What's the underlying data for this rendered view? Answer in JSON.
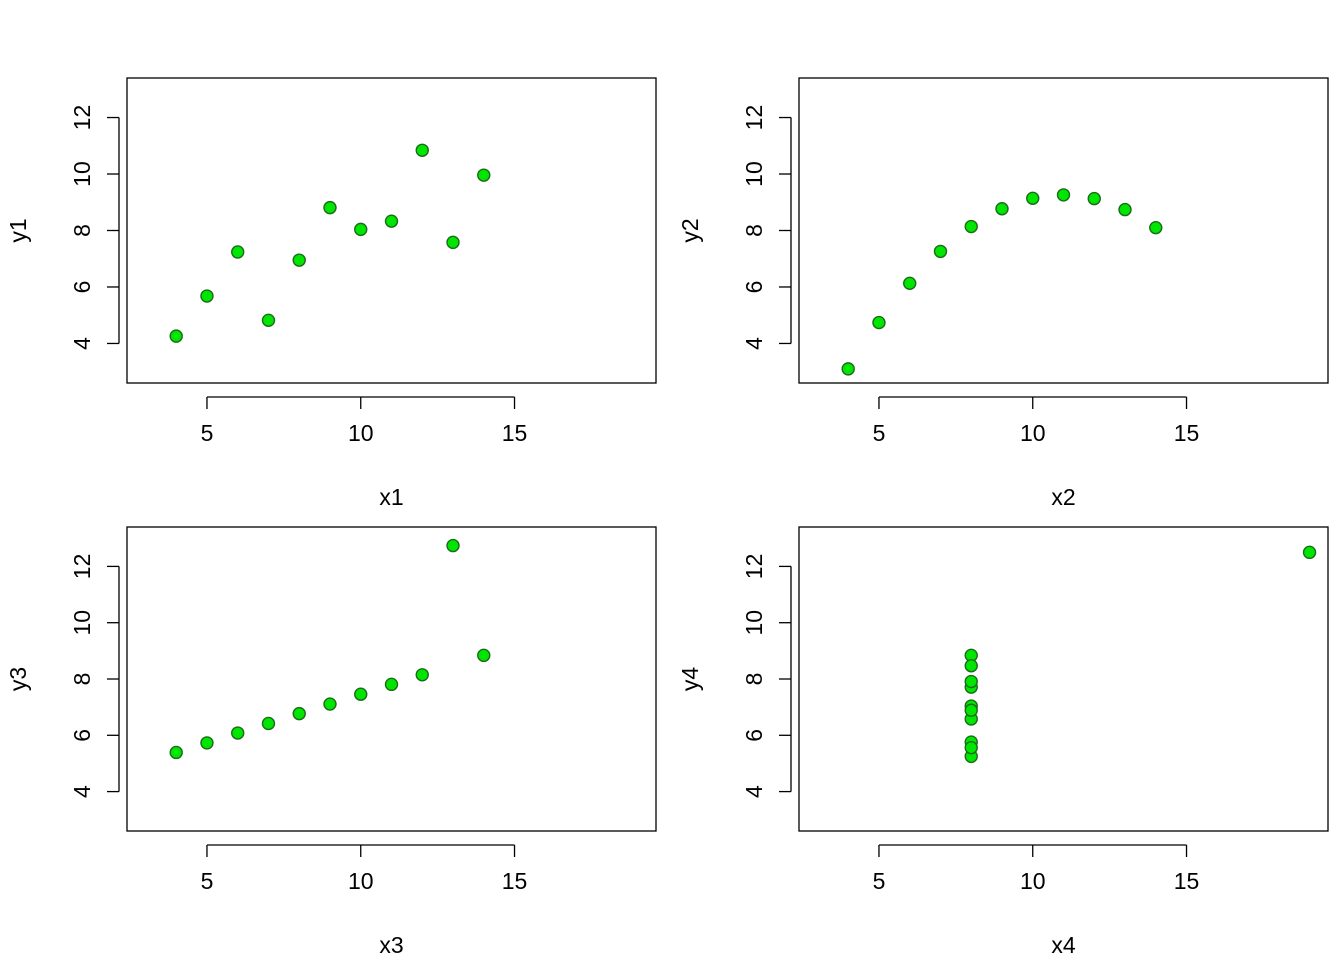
{
  "marker": {
    "fill": "#00e600",
    "stroke": "#1a6b1a"
  },
  "chart_data": [
    {
      "type": "scatter",
      "xlabel": "x1",
      "ylabel": "y1",
      "xlim": [
        2.4,
        19.6
      ],
      "ylim": [
        2.6,
        13.4
      ],
      "xticks": [
        "5",
        "10",
        "15"
      ],
      "yticks": [
        "4",
        "6",
        "8",
        "10",
        "12"
      ],
      "x": [
        10,
        8,
        13,
        9,
        11,
        14,
        6,
        4,
        12,
        7,
        5
      ],
      "y": [
        8.04,
        6.95,
        7.58,
        8.81,
        8.33,
        9.96,
        7.24,
        4.26,
        10.84,
        4.82,
        5.68
      ]
    },
    {
      "type": "scatter",
      "xlabel": "x2",
      "ylabel": "y2",
      "xlim": [
        2.4,
        19.6
      ],
      "ylim": [
        2.6,
        13.4
      ],
      "xticks": [
        "5",
        "10",
        "15"
      ],
      "yticks": [
        "4",
        "6",
        "8",
        "10",
        "12"
      ],
      "x": [
        10,
        8,
        13,
        9,
        11,
        14,
        6,
        4,
        12,
        7,
        5
      ],
      "y": [
        9.14,
        8.14,
        8.74,
        8.77,
        9.26,
        8.1,
        6.13,
        3.1,
        9.13,
        7.26,
        4.74
      ]
    },
    {
      "type": "scatter",
      "xlabel": "x3",
      "ylabel": "y3",
      "xlim": [
        2.4,
        19.6
      ],
      "ylim": [
        2.6,
        13.4
      ],
      "xticks": [
        "5",
        "10",
        "15"
      ],
      "yticks": [
        "4",
        "6",
        "8",
        "10",
        "12"
      ],
      "x": [
        10,
        8,
        13,
        9,
        11,
        14,
        6,
        4,
        12,
        7,
        5
      ],
      "y": [
        7.46,
        6.77,
        12.74,
        7.11,
        7.81,
        8.84,
        6.08,
        5.39,
        8.15,
        6.42,
        5.73
      ]
    },
    {
      "type": "scatter",
      "xlabel": "x4",
      "ylabel": "y4",
      "xlim": [
        2.4,
        19.6
      ],
      "ylim": [
        2.6,
        13.4
      ],
      "xticks": [
        "5",
        "10",
        "15"
      ],
      "yticks": [
        "4",
        "6",
        "8",
        "10",
        "12"
      ],
      "x": [
        8,
        8,
        8,
        8,
        8,
        8,
        8,
        19,
        8,
        8,
        8
      ],
      "y": [
        6.58,
        5.76,
        7.71,
        8.84,
        8.47,
        7.04,
        5.25,
        12.5,
        5.56,
        7.91,
        6.89
      ]
    }
  ]
}
